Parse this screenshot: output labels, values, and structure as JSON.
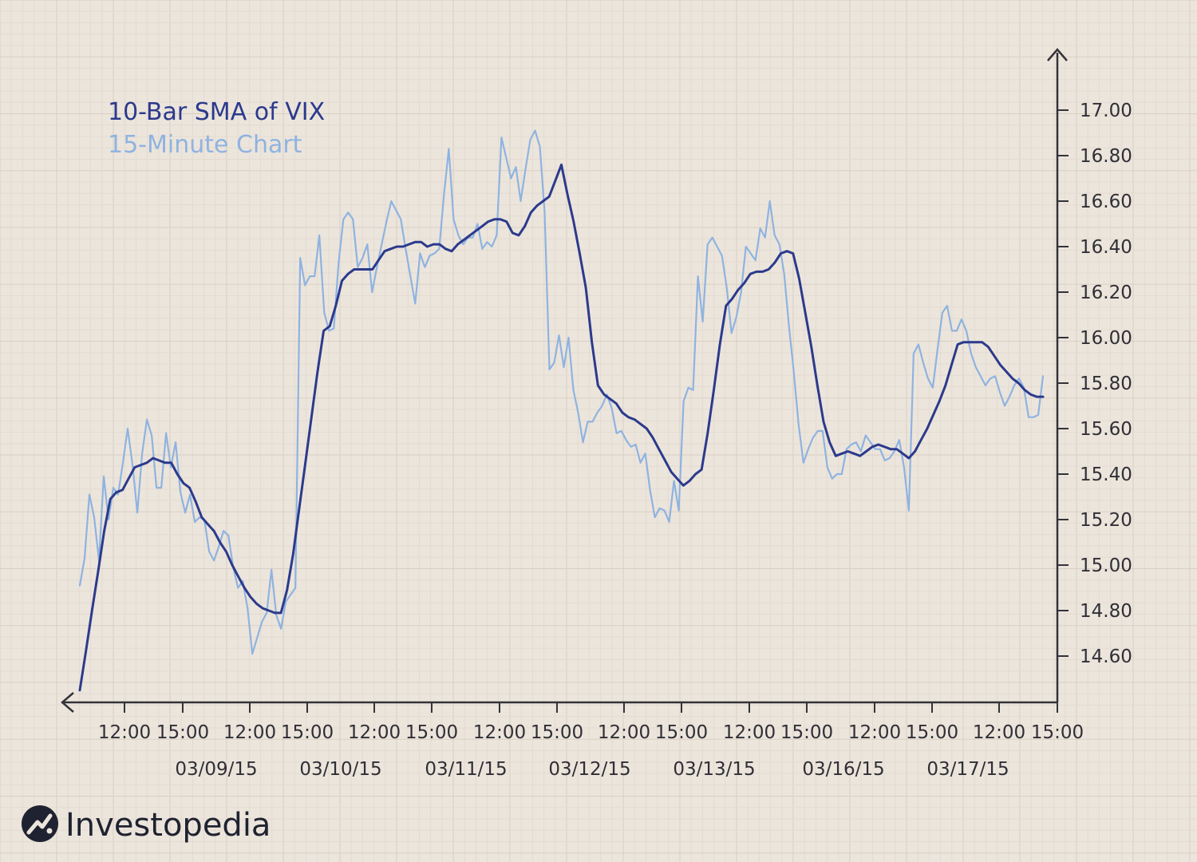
{
  "chart_data": {
    "type": "line",
    "title": "",
    "legend": [
      "10-Bar SMA of VIX",
      "15-Minute Chart"
    ],
    "legend_position": "top-left",
    "grid": true,
    "y_axis_position": "right",
    "ylim": [
      14.45,
      17.25
    ],
    "y_ticks": [
      "14.60",
      "14.80",
      "15.00",
      "15.20",
      "15.40",
      "15.60",
      "15.80",
      "16.00",
      "16.20",
      "16.40",
      "16.60",
      "16.80",
      "17.00"
    ],
    "x_time_ticks": [
      "12:00",
      "15:00",
      "12:00",
      "15:00",
      "12:00",
      "15:00",
      "12:00",
      "15:00",
      "12:00",
      "15:00",
      "12:00",
      "15:00",
      "12:00",
      "15:00",
      "12:00",
      "15:00"
    ],
    "x_date_labels": [
      "03/09/15",
      "03/10/15",
      "03/11/15",
      "03/12/15",
      "03/13/15",
      "03/16/15",
      "03/17/15"
    ],
    "series": [
      {
        "name": "15-Minute Chart",
        "color": "#8fb3e0",
        "values": [
          14.91,
          15.03,
          15.31,
          15.21,
          15.02,
          15.39,
          15.2,
          15.34,
          15.31,
          15.45,
          15.6,
          15.44,
          15.23,
          15.49,
          15.64,
          15.57,
          15.34,
          15.34,
          15.58,
          15.43,
          15.54,
          15.32,
          15.23,
          15.31,
          15.19,
          15.21,
          15.2,
          15.06,
          15.02,
          15.08,
          15.15,
          15.13,
          14.99,
          14.9,
          14.93,
          14.81,
          14.61,
          14.68,
          14.75,
          14.79,
          14.98,
          14.78,
          14.72,
          14.84,
          14.87,
          14.9,
          16.35,
          16.23,
          16.27,
          16.27,
          16.45,
          16.11,
          16.03,
          16.04,
          16.33,
          16.52,
          16.55,
          16.52,
          16.31,
          16.35,
          16.41,
          16.2,
          16.31,
          16.41,
          16.51,
          16.6,
          16.56,
          16.52,
          16.39,
          16.27,
          16.15,
          16.37,
          16.31,
          16.36,
          16.37,
          16.39,
          16.63,
          16.83,
          16.52,
          16.45,
          16.41,
          16.44,
          16.44,
          16.5,
          16.39,
          16.42,
          16.4,
          16.45,
          16.88,
          16.79,
          16.7,
          16.75,
          16.6,
          16.74,
          16.87,
          16.91,
          16.84,
          16.55,
          15.86,
          15.89,
          16.01,
          15.87,
          16.0,
          15.77,
          15.67,
          15.54,
          15.63,
          15.63,
          15.67,
          15.7,
          15.75,
          15.69,
          15.58,
          15.59,
          15.55,
          15.52,
          15.53,
          15.45,
          15.49,
          15.33,
          15.21,
          15.25,
          15.24,
          15.19,
          15.37,
          15.24,
          15.72,
          15.78,
          15.77,
          16.27,
          16.07,
          16.41,
          16.44,
          16.4,
          16.36,
          16.22,
          16.02,
          16.09,
          16.2,
          16.4,
          16.37,
          16.34,
          16.48,
          16.44,
          16.6,
          16.45,
          16.41,
          16.28,
          16.05,
          15.85,
          15.62,
          15.45,
          15.51,
          15.56,
          15.59,
          15.59,
          15.43,
          15.38,
          15.4,
          15.4,
          15.51,
          15.53,
          15.54,
          15.5,
          15.57,
          15.54,
          15.51,
          15.51,
          15.46,
          15.47,
          15.5,
          15.55,
          15.43,
          15.24,
          15.93,
          15.97,
          15.89,
          15.82,
          15.78,
          15.95,
          16.11,
          16.14,
          16.03,
          16.03,
          16.08,
          16.03,
          15.93,
          15.87,
          15.83,
          15.79,
          15.82,
          15.83,
          15.76,
          15.7,
          15.74,
          15.79,
          15.82,
          15.78,
          15.65,
          15.65,
          15.66,
          15.83
        ]
      },
      {
        "name": "10-Bar SMA of VIX",
        "color": "#2b3a8c",
        "values": [
          14.45,
          14.62,
          14.8,
          14.97,
          15.15,
          15.29,
          15.32,
          15.33,
          15.38,
          15.43,
          15.44,
          15.45,
          15.47,
          15.46,
          15.45,
          15.45,
          15.4,
          15.36,
          15.34,
          15.28,
          15.21,
          15.18,
          15.15,
          15.1,
          15.06,
          15.0,
          14.95,
          14.9,
          14.86,
          14.83,
          14.81,
          14.8,
          14.79,
          14.79,
          14.89,
          15.05,
          15.25,
          15.45,
          15.65,
          15.85,
          16.03,
          16.05,
          16.14,
          16.25,
          16.28,
          16.3,
          16.3,
          16.3,
          16.3,
          16.34,
          16.38,
          16.39,
          16.4,
          16.4,
          16.41,
          16.42,
          16.42,
          16.4,
          16.41,
          16.41,
          16.39,
          16.38,
          16.41,
          16.43,
          16.45,
          16.47,
          16.49,
          16.51,
          16.52,
          16.52,
          16.51,
          16.46,
          16.45,
          16.49,
          16.55,
          16.58,
          16.6,
          16.62,
          16.69,
          16.76,
          16.63,
          16.51,
          16.37,
          16.22,
          15.98,
          15.79,
          15.75,
          15.73,
          15.71,
          15.67,
          15.65,
          15.64,
          15.62,
          15.6,
          15.56,
          15.51,
          15.46,
          15.41,
          15.38,
          15.35,
          15.37,
          15.4,
          15.42,
          15.58,
          15.77,
          15.97,
          16.14,
          16.17,
          16.21,
          16.24,
          16.28,
          16.29,
          16.29,
          16.3,
          16.33,
          16.37,
          16.38,
          16.37,
          16.26,
          16.11,
          15.96,
          15.79,
          15.63,
          15.54,
          15.48,
          15.49,
          15.5,
          15.49,
          15.48,
          15.5,
          15.52,
          15.53,
          15.52,
          15.51,
          15.51,
          15.49,
          15.47,
          15.5,
          15.55,
          15.6,
          15.66,
          15.72,
          15.79,
          15.88,
          15.97,
          15.98,
          15.98,
          15.98,
          15.98,
          15.96,
          15.92,
          15.88,
          15.85,
          15.82,
          15.8,
          15.77,
          15.75,
          15.74,
          15.74
        ]
      }
    ]
  },
  "brand": {
    "name": "Investopedia"
  }
}
